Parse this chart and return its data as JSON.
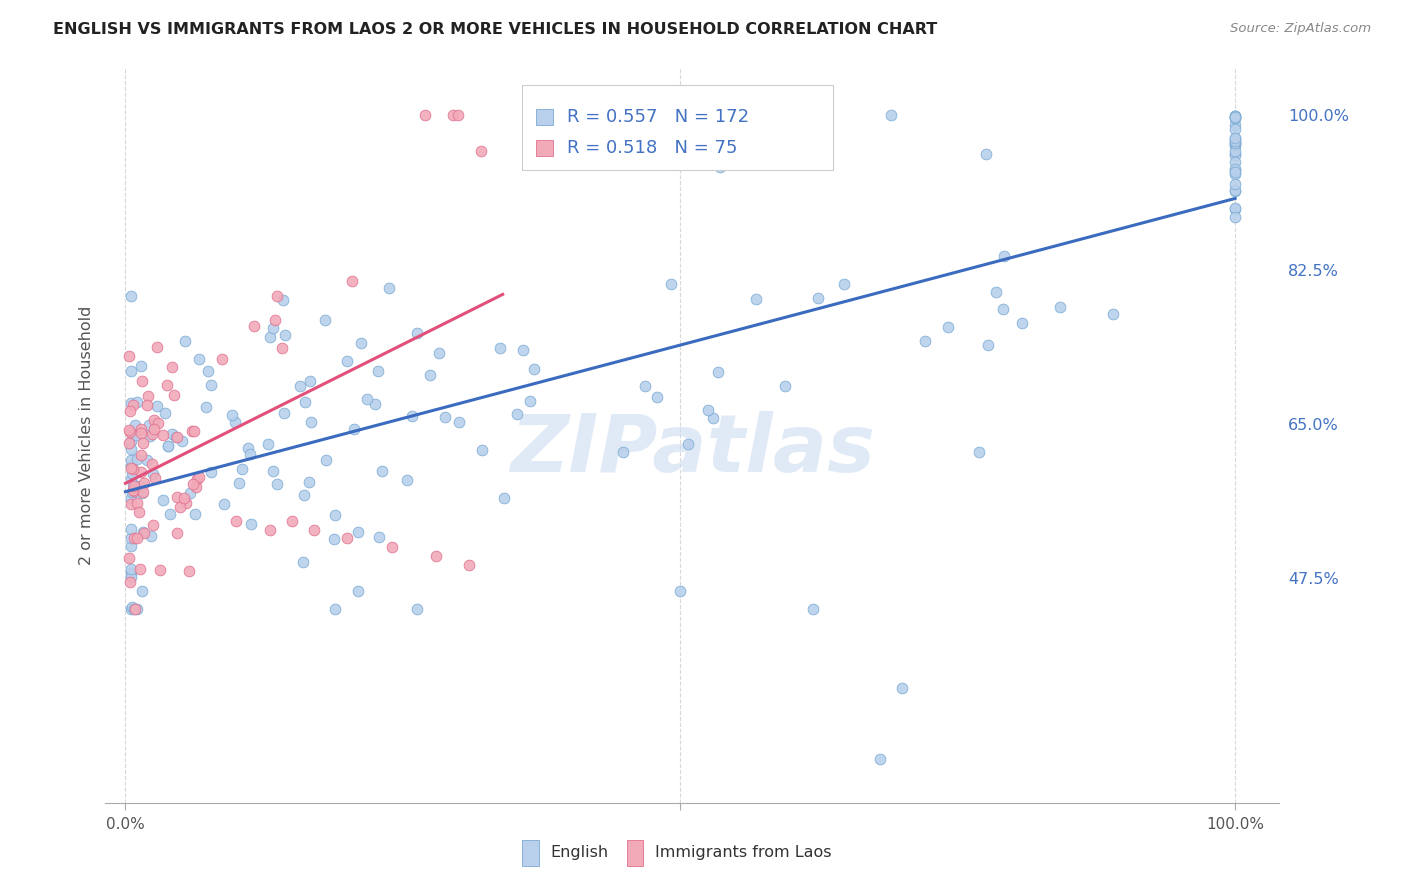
{
  "title": "ENGLISH VS IMMIGRANTS FROM LAOS 2 OR MORE VEHICLES IN HOUSEHOLD CORRELATION CHART",
  "source": "Source: ZipAtlas.com",
  "ylabel": "2 or more Vehicles in Household",
  "legend_english": "English",
  "legend_laos": "Immigrants from Laos",
  "r_english": 0.557,
  "n_english": 172,
  "r_laos": 0.518,
  "n_laos": 75,
  "color_english_fill": "#b8d0eb",
  "color_english_edge": "#7aaad4",
  "color_english_line": "#3a6bbf",
  "color_laos_fill": "#f2aab8",
  "color_laos_edge": "#e07090",
  "color_laos_line": "#e0507a",
  "watermark": "ZIPatlas",
  "background_color": "#ffffff",
  "grid_color": "#d8d8d8",
  "ytick_color": "#4472c4",
  "xtick_color": "#555555",
  "title_color": "#222222",
  "source_color": "#888888",
  "ylabel_color": "#555555"
}
